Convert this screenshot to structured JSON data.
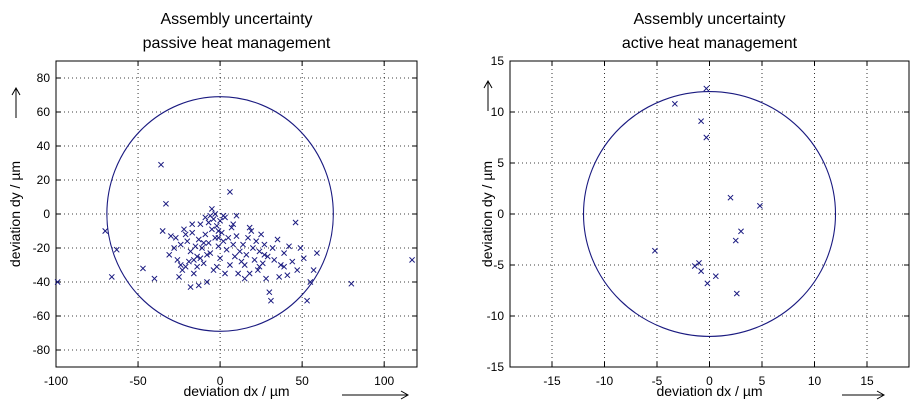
{
  "chart_data": [
    {
      "type": "scatter",
      "title": [
        "Assembly uncertainty",
        "passive heat management"
      ],
      "xlabel": "deviation dx / µm",
      "ylabel": "deviation dy / µm",
      "xlim": [
        -100,
        120
      ],
      "ylim": [
        -90,
        90
      ],
      "xticks": [
        -100,
        -50,
        0,
        50,
        100
      ],
      "yticks": [
        -80,
        -60,
        -40,
        -20,
        0,
        20,
        40,
        60,
        80
      ],
      "grid": true,
      "marker": "x",
      "color": "#1a1a80",
      "circle": {
        "cx": 0,
        "cy": 0,
        "r": 69
      },
      "points": [
        [
          -99,
          -40
        ],
        [
          -70,
          -10
        ],
        [
          -66,
          -37
        ],
        [
          -63,
          -21
        ],
        [
          -47,
          -32
        ],
        [
          -40,
          -38
        ],
        [
          -36,
          29
        ],
        [
          -33,
          6
        ],
        [
          -30,
          -13
        ],
        [
          -28,
          -20
        ],
        [
          -26,
          -27
        ],
        [
          -24,
          -18
        ],
        [
          -23,
          -33
        ],
        [
          -22,
          -9
        ],
        [
          -21,
          -12
        ],
        [
          -20,
          -16
        ],
        [
          -19,
          -28
        ],
        [
          -18,
          -22
        ],
        [
          -17,
          -11
        ],
        [
          -16,
          -35
        ],
        [
          -15,
          -19
        ],
        [
          -14,
          -25
        ],
        [
          -13,
          -15
        ],
        [
          -12,
          -6
        ],
        [
          -11,
          -20
        ],
        [
          -10,
          -29
        ],
        [
          -9,
          -12
        ],
        [
          -8,
          -40
        ],
        [
          -7,
          -17
        ],
        [
          -6,
          -23
        ],
        [
          -5,
          -9
        ],
        [
          -4,
          -3
        ],
        [
          -3,
          -14
        ],
        [
          -2,
          -31
        ],
        [
          -1,
          -19
        ],
        [
          0,
          -26
        ],
        [
          1,
          -11
        ],
        [
          2,
          -16
        ],
        [
          3,
          -2
        ],
        [
          4,
          -21
        ],
        [
          5,
          -14
        ],
        [
          6,
          -30
        ],
        [
          7,
          -8
        ],
        [
          8,
          -18
        ],
        [
          9,
          -25
        ],
        [
          10,
          -13
        ],
        [
          11,
          -35
        ],
        [
          -35,
          -10
        ],
        [
          -31,
          -24
        ],
        [
          -27,
          -14
        ],
        [
          -25,
          -37
        ],
        [
          -9,
          -2
        ],
        [
          -7,
          -5
        ],
        [
          -6,
          -1
        ],
        [
          -5,
          3
        ],
        [
          -3,
          0
        ],
        [
          -2,
          -7
        ],
        [
          -1,
          -10
        ],
        [
          0,
          -4
        ],
        [
          2,
          -1
        ],
        [
          -12,
          -26
        ],
        [
          -10,
          -17
        ],
        [
          -4,
          -33
        ],
        [
          -16,
          -27
        ],
        [
          -18,
          -43
        ],
        [
          -14,
          -31
        ],
        [
          -13,
          -42
        ],
        [
          12,
          -22
        ],
        [
          13,
          -28
        ],
        [
          14,
          -18
        ],
        [
          15,
          -30
        ],
        [
          16,
          -24
        ],
        [
          17,
          -14
        ],
        [
          18,
          -35
        ],
        [
          19,
          -10
        ],
        [
          20,
          -20
        ],
        [
          21,
          -27
        ],
        [
          22,
          -16
        ],
        [
          23,
          -33
        ],
        [
          24,
          -22
        ],
        [
          25,
          -12
        ],
        [
          26,
          -29
        ],
        [
          27,
          -18
        ],
        [
          28,
          -38
        ],
        [
          29,
          -25
        ],
        [
          30,
          -46
        ],
        [
          31,
          -51
        ],
        [
          32,
          -20
        ],
        [
          33,
          -27
        ],
        [
          35,
          -15
        ],
        [
          37,
          -30
        ],
        [
          39,
          -23
        ],
        [
          41,
          -36
        ],
        [
          42,
          -19
        ],
        [
          44,
          -28
        ],
        [
          46,
          -5
        ],
        [
          47,
          -33
        ],
        [
          49,
          -20
        ],
        [
          51,
          -26
        ],
        [
          53,
          -51
        ],
        [
          55,
          -40
        ],
        [
          57,
          -33
        ],
        [
          59,
          -23
        ],
        [
          6,
          13
        ],
        [
          -1,
          -14
        ],
        [
          80,
          -41
        ],
        [
          117,
          -27
        ],
        [
          8,
          -6
        ],
        [
          10,
          -1
        ],
        [
          36,
          -37
        ],
        [
          3,
          -35
        ],
        [
          -21,
          -31
        ],
        [
          -8,
          -24
        ],
        [
          -17,
          -6
        ],
        [
          -24,
          -30
        ],
        [
          15,
          -38
        ],
        [
          18,
          -8
        ],
        [
          24,
          -31
        ],
        [
          27,
          -24
        ],
        [
          39,
          -31
        ]
      ]
    },
    {
      "type": "scatter",
      "title": [
        "Assembly uncertainty",
        "active heat management"
      ],
      "xlabel": "deviation dx / µm",
      "ylabel": "deviation dy / µm",
      "xlim": [
        -19,
        19
      ],
      "ylim": [
        -15,
        15
      ],
      "xticks": [
        -15,
        -10,
        -5,
        0,
        5,
        10,
        15
      ],
      "yticks": [
        -15,
        -10,
        -5,
        0,
        5,
        10,
        15
      ],
      "grid": true,
      "marker": "x",
      "color": "#1a1a80",
      "circle": {
        "cx": 0,
        "cy": 0,
        "r": 12
      },
      "points": [
        [
          -0.3,
          12.3
        ],
        [
          -3.3,
          10.8
        ],
        [
          -0.8,
          9.1
        ],
        [
          -0.3,
          7.5
        ],
        [
          2,
          1.6
        ],
        [
          4.8,
          0.8
        ],
        [
          3,
          -1.7
        ],
        [
          2.5,
          -2.6
        ],
        [
          -5.2,
          -3.6
        ],
        [
          -1.4,
          -5.1
        ],
        [
          -1,
          -4.8
        ],
        [
          -0.8,
          -5.6
        ],
        [
          0.6,
          -6.1
        ],
        [
          -0.2,
          -6.8
        ],
        [
          2.6,
          -7.8
        ]
      ]
    }
  ]
}
